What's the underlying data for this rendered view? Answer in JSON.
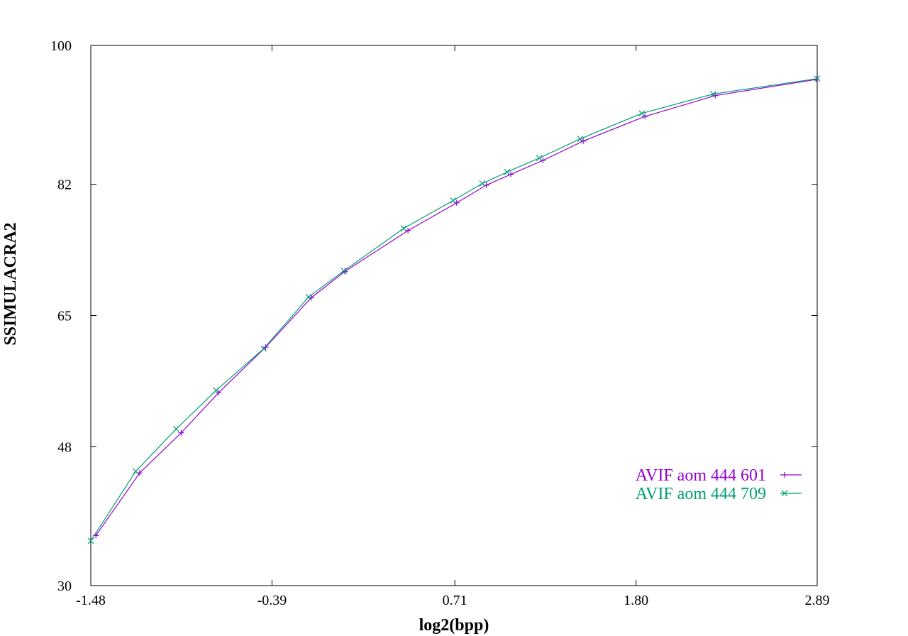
{
  "chart_data": {
    "type": "line",
    "title": "",
    "xlabel": "log2(bpp)",
    "ylabel": "SSIMULACRA2",
    "xlim": [
      -1.48,
      2.89
    ],
    "ylim": [
      30,
      100
    ],
    "x_ticks": [
      "-1.48",
      "-0.39",
      "0.71",
      "1.80",
      "2.89"
    ],
    "y_ticks": [
      "30",
      "48",
      "65",
      "82",
      "100"
    ],
    "grid": false,
    "legend_position": "bottom-right",
    "series": [
      {
        "name": "AVIF aom 444 601",
        "color": "#9400d3",
        "marker": "plus",
        "x": [
          -1.449,
          -1.186,
          -0.936,
          -0.711,
          -0.428,
          -0.154,
          0.048,
          0.428,
          0.721,
          0.9,
          1.047,
          1.24,
          1.482,
          1.854,
          2.277,
          2.886
        ],
        "y": [
          36.5,
          44.6,
          49.8,
          55.0,
          60.9,
          67.3,
          70.7,
          76.0,
          79.6,
          81.9,
          83.3,
          85.1,
          87.6,
          90.8,
          93.5,
          95.6
        ]
      },
      {
        "name": "AVIF aom 444 709",
        "color": "#009e73",
        "marker": "x",
        "x": [
          -1.48,
          -1.21,
          -0.966,
          -0.726,
          -0.44,
          -0.17,
          0.043,
          0.403,
          0.7,
          0.875,
          1.025,
          1.218,
          1.465,
          1.835,
          2.264,
          2.89
        ],
        "y": [
          35.8,
          44.8,
          50.3,
          55.3,
          60.7,
          67.4,
          70.8,
          76.3,
          79.9,
          82.1,
          83.6,
          85.4,
          87.9,
          91.2,
          93.7,
          95.7
        ]
      }
    ]
  }
}
